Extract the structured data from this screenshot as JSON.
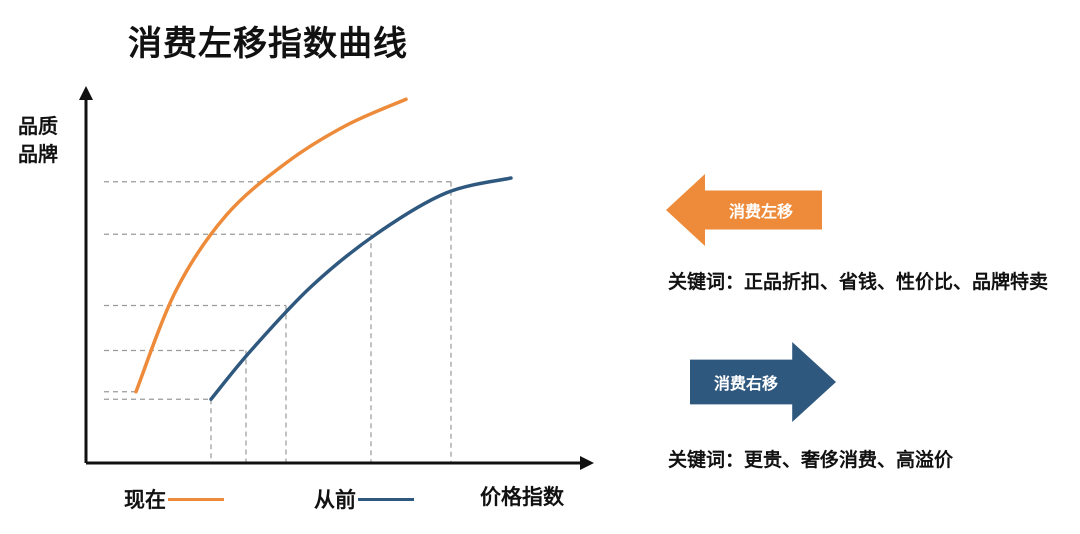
{
  "chart_data": {
    "type": "line",
    "title": "消费左移指数曲线",
    "ylabel": "品质\n品牌",
    "xlabel": "价格指数",
    "grid": "dashed guide lines",
    "legend": "bottom",
    "xlim": [
      0,
      100
    ],
    "ylim": [
      0,
      100
    ],
    "series": [
      {
        "name": "现在",
        "color": "#ED8B3A",
        "x": [
          10,
          18,
          28,
          40,
          52,
          64
        ],
        "y": [
          19,
          46,
          66,
          80,
          90,
          97
        ]
      },
      {
        "name": "从前",
        "color": "#2F587F",
        "x": [
          25,
          33,
          45,
          58,
          72,
          85
        ],
        "y": [
          17,
          30,
          47,
          61,
          72,
          76
        ]
      }
    ],
    "guides": [
      {
        "series": 0,
        "x": 10,
        "y": 19
      },
      {
        "series": 1,
        "x": 25,
        "y": 17
      },
      {
        "series": 1,
        "x": 32,
        "y": 30
      },
      {
        "series": 1,
        "x": 40,
        "y": 42
      },
      {
        "series": 1,
        "x": 57,
        "y": 61
      },
      {
        "series": 1,
        "x": 73,
        "y": 75
      }
    ]
  },
  "arrows": {
    "left": {
      "label": "消费左移",
      "color": "#ED8B3A"
    },
    "right": {
      "label": "消费右移",
      "color": "#2F587F"
    }
  },
  "keywords": {
    "left": "关键词：正品折扣、省钱、性价比、品牌特卖",
    "right": "关键词：更贵、奢侈消费、高溢价"
  }
}
